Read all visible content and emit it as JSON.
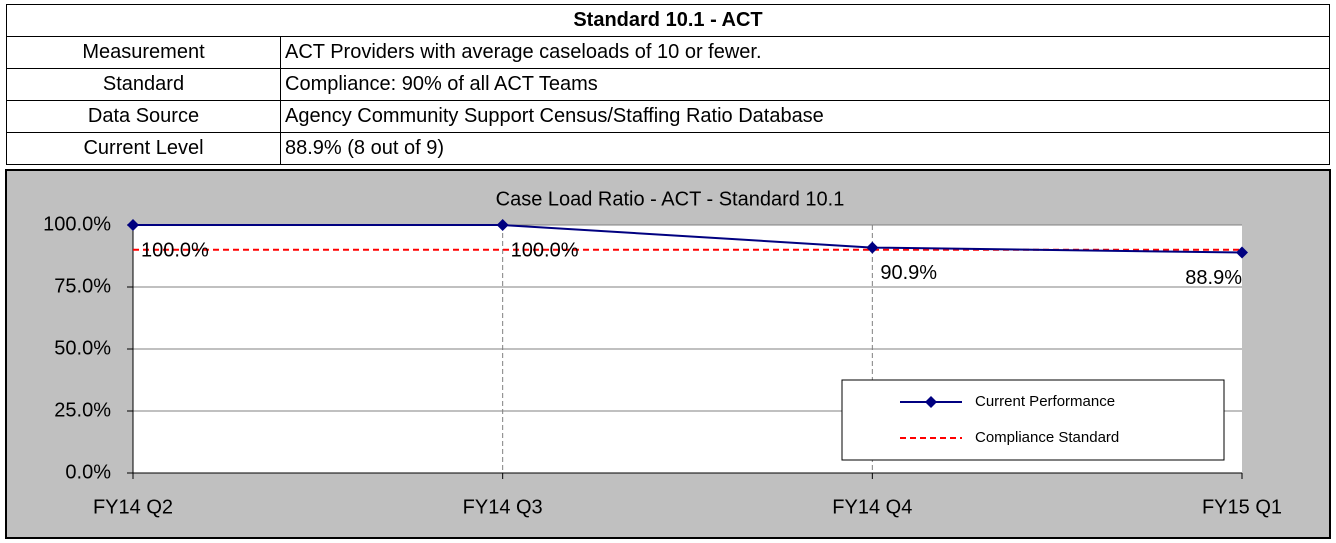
{
  "table": {
    "title": "Standard 10.1 - ACT",
    "rows": [
      [
        "Measurement",
        "ACT Providers with average caseloads of 10 or fewer."
      ],
      [
        "Standard",
        "Compliance: 90% of all ACT Teams"
      ],
      [
        "Data Source",
        "Agency Community Support Census/Staffing Ratio Database"
      ],
      [
        "Current Level",
        "88.9% (8 out of 9)"
      ]
    ]
  },
  "chart_data": {
    "type": "line",
    "title": "Case Load Ratio - ACT - Standard 10.1",
    "categories": [
      "FY14 Q2",
      "FY14 Q3",
      "FY14 Q4",
      "FY15 Q1"
    ],
    "series": [
      {
        "name": "Current Performance",
        "color": "#000080",
        "values": [
          100,
          100,
          90.9,
          88.9
        ],
        "value_labels": [
          "100.0%",
          "100.0%",
          "90.9%",
          "88.9%"
        ]
      },
      {
        "name": "Compliance Standard",
        "color": "#ff0000",
        "values": [
          90,
          90,
          90,
          90
        ]
      }
    ],
    "ylim": [
      0,
      100
    ],
    "yticks": [
      {
        "value": 0,
        "label": "0.0%"
      },
      {
        "value": 25,
        "label": "25.0%"
      },
      {
        "value": 50,
        "label": "50.0%"
      },
      {
        "value": 75,
        "label": "75.0%"
      },
      {
        "value": 100,
        "label": "100.0%"
      }
    ],
    "grid": true,
    "legend": "lower right"
  }
}
